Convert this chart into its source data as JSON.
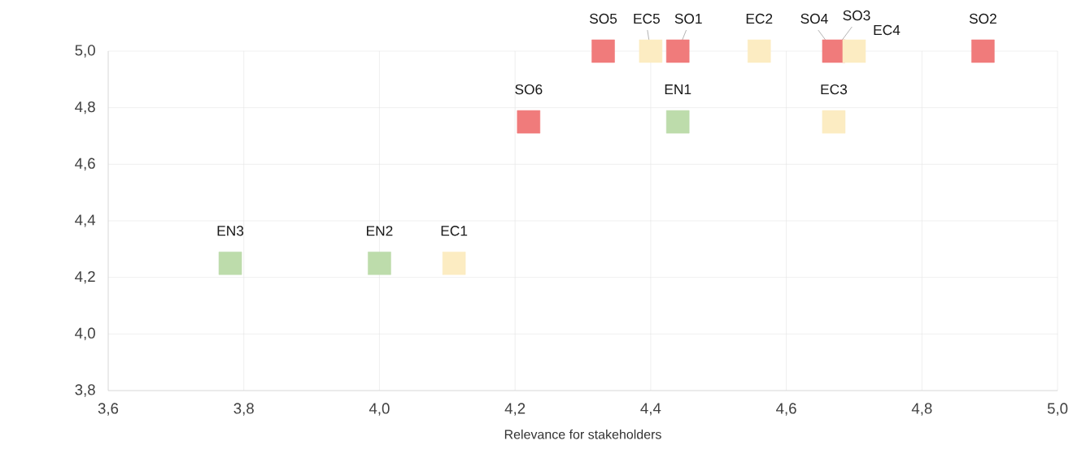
{
  "chart_data": {
    "type": "scatter",
    "xlabel": "Relevance for stakeholders",
    "xlim": [
      3.6,
      5.0
    ],
    "ylim": [
      3.8,
      5.0
    ],
    "xticks": [
      {
        "value": 3.6,
        "label": "3,6"
      },
      {
        "value": 3.8,
        "label": "3,8"
      },
      {
        "value": 4.0,
        "label": "4,0"
      },
      {
        "value": 4.2,
        "label": "4,2"
      },
      {
        "value": 4.4,
        "label": "4,4"
      },
      {
        "value": 4.6,
        "label": "4,6"
      },
      {
        "value": 4.8,
        "label": "4,8"
      },
      {
        "value": 5.0,
        "label": "5,0"
      }
    ],
    "yticks": [
      {
        "value": 3.8,
        "label": "3,8"
      },
      {
        "value": 4.0,
        "label": "4,0"
      },
      {
        "value": 4.2,
        "label": "4,2"
      },
      {
        "value": 4.4,
        "label": "4,4"
      },
      {
        "value": 4.6,
        "label": "4,6"
      },
      {
        "value": 4.8,
        "label": "4,8"
      },
      {
        "value": 5.0,
        "label": "5,0"
      }
    ],
    "grid": true,
    "marker": "square",
    "series": [
      {
        "color": "#f07b7b",
        "x": [
          4.44,
          4.89,
          4.67,
          4.33,
          4.22
        ],
        "values": [
          5.0,
          5.0,
          5.0,
          5.0,
          4.75
        ]
      },
      {
        "color": "#fcecc2",
        "x": [
          4.11,
          4.56,
          4.67,
          4.7,
          4.4
        ],
        "values": [
          4.25,
          5.0,
          4.75,
          5.0,
          5.0
        ]
      },
      {
        "color": "#bddcab",
        "x": [
          4.44,
          4.0,
          3.78
        ],
        "values": [
          4.75,
          4.25,
          4.25
        ]
      }
    ],
    "annotations": [
      {
        "text": "SO1",
        "x": 4.44,
        "y": 5.0
      },
      {
        "text": "SO2",
        "x": 4.89,
        "y": 5.0
      },
      {
        "text": "SO3",
        "x": 4.67,
        "y": 5.0
      },
      {
        "text": "SO4",
        "x": 4.67,
        "y": 5.0
      },
      {
        "text": "SO5",
        "x": 4.33,
        "y": 5.0
      },
      {
        "text": "SO6",
        "x": 4.22,
        "y": 4.75
      },
      {
        "text": "EC1",
        "x": 4.11,
        "y": 4.25
      },
      {
        "text": "EC2",
        "x": 4.56,
        "y": 5.0
      },
      {
        "text": "EC3",
        "x": 4.67,
        "y": 4.75
      },
      {
        "text": "EC4",
        "x": 4.7,
        "y": 5.0
      },
      {
        "text": "EC5",
        "x": 4.4,
        "y": 5.0
      },
      {
        "text": "EN1",
        "x": 4.44,
        "y": 4.75
      },
      {
        "text": "EN2",
        "x": 4.0,
        "y": 4.25
      },
      {
        "text": "EN3",
        "x": 3.78,
        "y": 4.25
      }
    ]
  }
}
